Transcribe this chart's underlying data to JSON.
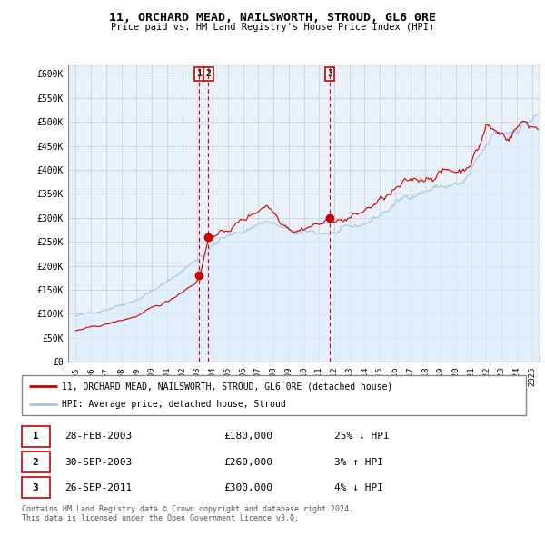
{
  "title": "11, ORCHARD MEAD, NAILSWORTH, STROUD, GL6 0RE",
  "subtitle": "Price paid vs. HM Land Registry's House Price Index (HPI)",
  "legend_line1": "11, ORCHARD MEAD, NAILSWORTH, STROUD, GL6 0RE (detached house)",
  "legend_line2": "HPI: Average price, detached house, Stroud",
  "transactions": [
    {
      "num": 1,
      "date": "28-FEB-2003",
      "price": 180000,
      "hpi_diff": "25% ↓ HPI",
      "year": 2003.125
    },
    {
      "num": 2,
      "date": "30-SEP-2003",
      "price": 260000,
      "hpi_diff": "3% ↑ HPI",
      "year": 2003.708
    },
    {
      "num": 3,
      "date": "26-SEP-2011",
      "price": 300000,
      "hpi_diff": "4% ↓ HPI",
      "year": 2011.708
    }
  ],
  "red_color": "#cc0000",
  "blue_color": "#aac4e0",
  "blue_fill": "#ddeeff",
  "bg_color": "#ffffff",
  "grid_color": "#cccccc",
  "marker_box_color": "#cc0000",
  "ylim": [
    0,
    620000
  ],
  "ytick_values": [
    0,
    50000,
    100000,
    150000,
    200000,
    250000,
    300000,
    350000,
    400000,
    450000,
    500000,
    550000,
    600000
  ],
  "ytick_labels": [
    "£0",
    "£50K",
    "£100K",
    "£150K",
    "£200K",
    "£250K",
    "£300K",
    "£350K",
    "£400K",
    "£450K",
    "£500K",
    "£550K",
    "£600K"
  ],
  "footer": "Contains HM Land Registry data © Crown copyright and database right 2024.\nThis data is licensed under the Open Government Licence v3.0."
}
